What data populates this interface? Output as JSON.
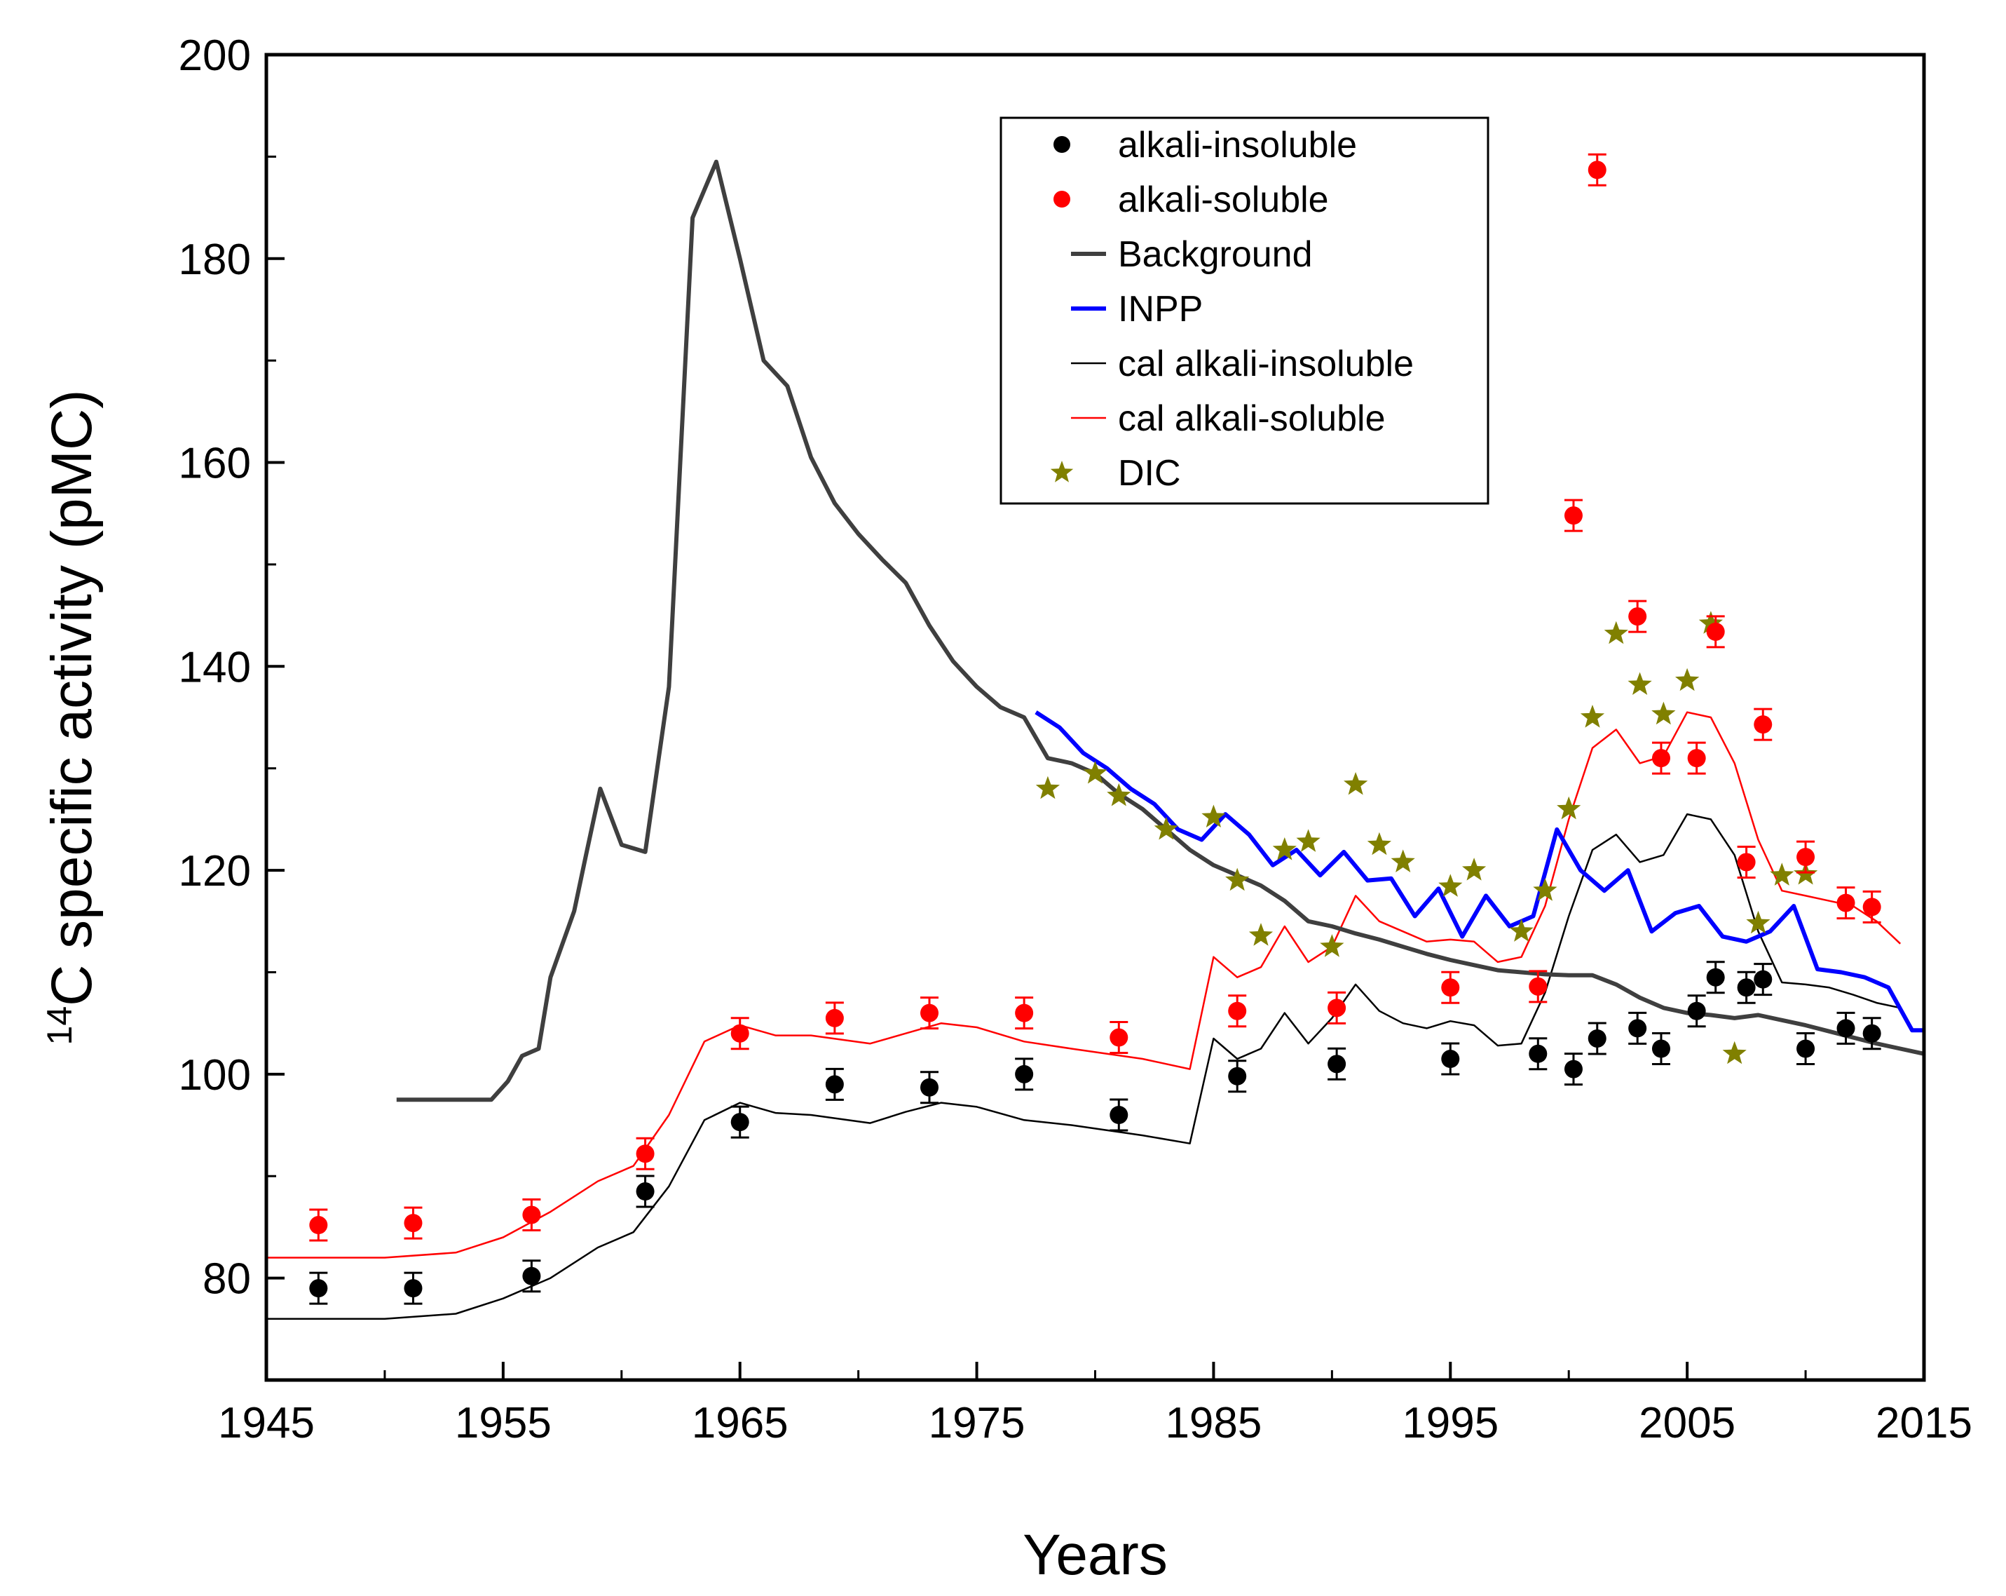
{
  "chart_data": {
    "type": "line",
    "title": "",
    "xlabel": "Years",
    "ylabel_sup": "14",
    "ylabel_rest": "C specific activity (pMC)",
    "xlim": [
      1945,
      2015
    ],
    "ylim": [
      70,
      200
    ],
    "x_ticks": [
      1945,
      1955,
      1965,
      1975,
      1985,
      1995,
      2005,
      2015
    ],
    "y_ticks": [
      80,
      100,
      120,
      140,
      160,
      180,
      200
    ],
    "x_tick_labels": [
      "1945",
      "1955",
      "1965",
      "1975",
      "1985",
      "1995",
      "2005",
      "2015"
    ],
    "y_tick_labels": [
      "80",
      "100",
      "120",
      "140",
      "160",
      "180",
      "200"
    ],
    "legend_position": "top-right",
    "series": [
      {
        "name": "alkali-insoluble",
        "kind": "scatter",
        "marker": "circle",
        "color": "#000000",
        "x": [
          1947.2,
          1951.2,
          1956.2,
          1961,
          1965,
          1969,
          1973,
          1977,
          1981,
          1986,
          1990.2,
          1995,
          1998.7,
          2000.2,
          2001.2,
          2002.9,
          2003.9,
          2005.4,
          2006.2,
          2007.5,
          2008.2,
          2010,
          2011.7,
          2012.8
        ],
        "y": [
          79,
          79,
          80.2,
          88.5,
          95.3,
          99,
          98.7,
          100,
          96,
          99.8,
          101,
          101.5,
          102,
          100.5,
          103.5,
          104.5,
          102.5,
          106.2,
          109.5,
          108.5,
          109.3,
          102.5,
          104.5,
          104
        ]
      },
      {
        "name": "alkali-soluble",
        "kind": "scatter",
        "marker": "circle",
        "color": "#ff0000",
        "x": [
          1947.2,
          1951.2,
          1956.2,
          1961,
          1965,
          1969,
          1973,
          1977,
          1981,
          1986,
          1990.2,
          1995,
          1998.7,
          2000.2,
          2001.2,
          2002.9,
          2003.9,
          2005.4,
          2006.2,
          2007.5,
          2008.2,
          2010,
          2011.7,
          2012.8
        ],
        "y": [
          85.2,
          85.4,
          86.2,
          92.2,
          104,
          105.5,
          106,
          106,
          103.6,
          106.2,
          106.5,
          108.5,
          108.6,
          154.8,
          188.7,
          144.9,
          131,
          131,
          143.4,
          120.8,
          134.3,
          121.3,
          116.8,
          116.4
        ]
      },
      {
        "name": "Background",
        "kind": "line",
        "color": "#3f3f3f",
        "width": 6,
        "x": [
          1950.5,
          1951,
          1952,
          1953,
          1954.5,
          1955.2,
          1955.8,
          1956.5,
          1957,
          1958,
          1958.5,
          1959.1,
          1960,
          1961,
          1962,
          1963,
          1964,
          1965,
          1966,
          1967,
          1968,
          1969,
          1970,
          1971,
          1972,
          1973,
          1974,
          1975,
          1976,
          1977,
          1978,
          1979,
          1980,
          1981,
          1982,
          1983,
          1984,
          1985,
          1986,
          1987,
          1988,
          1989,
          1990,
          1991,
          1992,
          1993,
          1994,
          1995,
          1996,
          1997,
          1998,
          1999,
          2000,
          2001,
          2002,
          2003,
          2004,
          2005,
          2006,
          2007,
          2008,
          2009,
          2010,
          2011,
          2012,
          2013,
          2014,
          2015
        ],
        "y": [
          97.5,
          97.5,
          97.5,
          97.5,
          97.5,
          99.3,
          101.8,
          102.5,
          109.5,
          116,
          121.5,
          128,
          122.5,
          121.8,
          138,
          184,
          189.5,
          180,
          170,
          167.5,
          160.5,
          156,
          153,
          150.5,
          148.2,
          144,
          140.5,
          138,
          136,
          135,
          131,
          130.5,
          129.5,
          127.5,
          126,
          124,
          122,
          120.5,
          119.5,
          118.5,
          117,
          115,
          114.5,
          113.8,
          113.2,
          112.5,
          111.8,
          111.2,
          110.7,
          110.2,
          110,
          109.8,
          109.7,
          109.7,
          108.8,
          107.5,
          106.5,
          106,
          105.8,
          105.5,
          105.8,
          105.3,
          104.8,
          104.2,
          103.6,
          103,
          102.5,
          102
        ]
      },
      {
        "name": "INPP",
        "kind": "line",
        "color": "#0000ff",
        "width": 6,
        "x": [
          1977.5,
          1978.5,
          1979.5,
          1980.5,
          1981.5,
          1982.5,
          1983.5,
          1984.5,
          1985.5,
          1986.5,
          1987.5,
          1988.5,
          1989.5,
          1990.5,
          1991.5,
          1992.5,
          1993.5,
          1994.5,
          1995.5,
          1996.5,
          1997.5,
          1998.5,
          1999.5,
          2000.5,
          2001.5,
          2002.5,
          2003.5,
          2004.5,
          2005.5,
          2006.5,
          2007.5,
          2008.5,
          2009.5,
          2010.5,
          2011.5,
          2012.5,
          2013.5,
          2014.5,
          2015
        ],
        "y": [
          135.5,
          134,
          131.5,
          130,
          128,
          126.5,
          124,
          123,
          125.5,
          123.5,
          120.5,
          122,
          119.5,
          121.8,
          119,
          119.2,
          115.5,
          118.2,
          113.5,
          117.5,
          114.5,
          115.5,
          124,
          120,
          118,
          120,
          114,
          115.8,
          116.5,
          113.5,
          113,
          114,
          116.5,
          110.3,
          110,
          109.5,
          108.5,
          104.3,
          104.3
        ]
      },
      {
        "name": "cal alkali-insoluble",
        "kind": "line",
        "color": "#000000",
        "width": 2.5,
        "x": [
          1945,
          1950,
          1953,
          1955,
          1957,
          1959,
          1960.5,
          1962,
          1963.5,
          1965,
          1966.5,
          1968,
          1970.5,
          1972,
          1973.5,
          1975,
          1977,
          1979,
          1982,
          1984,
          1985,
          1986,
          1987,
          1988,
          1989,
          1990,
          1991,
          1992,
          1993,
          1994,
          1995,
          1996,
          1997,
          1998,
          1999,
          2000,
          2001,
          2002,
          2003,
          2004,
          2005,
          2006,
          2007,
          2008,
          2009,
          2010,
          2011,
          2012,
          2013,
          2014
        ],
        "y": [
          76,
          76,
          76.5,
          78,
          80,
          83,
          84.5,
          89,
          95.5,
          97.2,
          96.2,
          96,
          95.2,
          96.3,
          97.2,
          96.8,
          95.5,
          95,
          94,
          93.2,
          103.5,
          101.5,
          102.5,
          106,
          103,
          105.5,
          108.8,
          106.2,
          105,
          104.5,
          105.2,
          104.8,
          102.8,
          103,
          108,
          115.5,
          122,
          123.5,
          120.8,
          121.5,
          125.5,
          125,
          121.5,
          114,
          109,
          108.8,
          108.5,
          107.8,
          107,
          106.5
        ]
      },
      {
        "name": "cal alkali-soluble",
        "kind": "line",
        "color": "#ff0000",
        "width": 2.5,
        "x": [
          1945,
          1950,
          1953,
          1955,
          1957,
          1959,
          1960.5,
          1962,
          1963.5,
          1965,
          1966.5,
          1968,
          1970.5,
          1972,
          1973.5,
          1975,
          1977,
          1979,
          1982,
          1984,
          1985,
          1986,
          1987,
          1988,
          1989,
          1990,
          1991,
          1992,
          1993,
          1994,
          1995,
          1996,
          1997,
          1998,
          1999,
          2000,
          2001,
          2002,
          2003,
          2004,
          2005,
          2006,
          2007,
          2008,
          2009,
          2010,
          2011,
          2012,
          2013,
          2014
        ],
        "y": [
          82,
          82,
          82.5,
          84,
          86.5,
          89.5,
          91,
          96,
          103.2,
          104.8,
          103.8,
          103.8,
          103,
          104,
          105,
          104.6,
          103.2,
          102.5,
          101.5,
          100.5,
          111.5,
          109.5,
          110.5,
          114.5,
          111,
          112.5,
          117.5,
          115,
          114,
          113,
          113.2,
          113,
          111,
          111.5,
          116.5,
          125,
          132,
          133.8,
          130.5,
          131.2,
          135.5,
          135,
          130.5,
          123,
          118,
          117.5,
          117,
          116.5,
          115,
          112.8
        ]
      },
      {
        "name": "DIC",
        "kind": "scatter",
        "marker": "star",
        "color": "#808000",
        "x": [
          1978,
          1980,
          1981,
          1983,
          1985,
          1986,
          1987,
          1988,
          1989,
          1990,
          1991,
          1992,
          1993,
          1995,
          1996,
          1998,
          1999,
          2000,
          2001,
          2002,
          2003,
          2004,
          2005,
          2006,
          2007,
          2008,
          2009,
          2010
        ],
        "y": [
          128,
          129.5,
          127.3,
          124,
          125.2,
          119,
          113.6,
          122,
          122.8,
          112.5,
          128.4,
          122.5,
          120.8,
          118.4,
          120,
          114,
          118,
          126,
          135,
          143.2,
          138.2,
          135.3,
          138.6,
          144.2,
          102,
          114.8,
          119.5,
          119.6
        ]
      }
    ]
  }
}
